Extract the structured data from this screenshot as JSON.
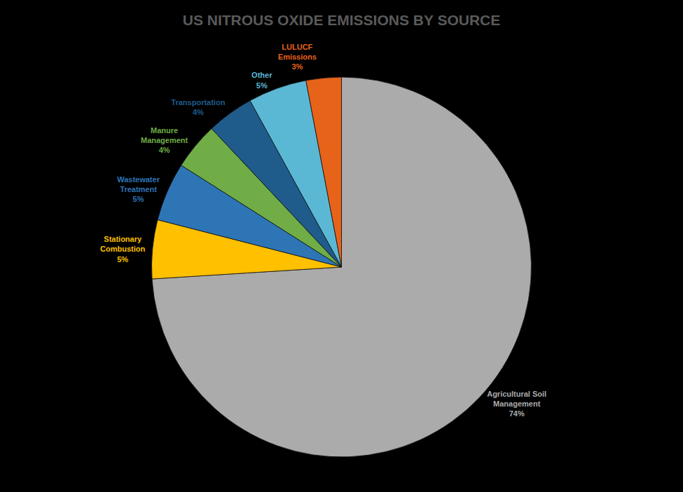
{
  "chart_data": {
    "type": "pie",
    "title": "US NITROUS OXIDE EMISSIONS BY SOURCE",
    "categories": [
      "Agricultural Soil\nManagement",
      "Stationary\nCombustion",
      "Wastewater\nTreatment",
      "Manure\nManagement",
      "Transportation",
      "Other",
      "LULUCF\nEmissions"
    ],
    "values": [
      74,
      5,
      5,
      4,
      4,
      5,
      3
    ],
    "value_labels": [
      "74%",
      "5%",
      "5%",
      "4%",
      "4%",
      "5%",
      "3%"
    ],
    "colors": [
      "#ABABAB",
      "#FFC000",
      "#2E75B6",
      "#70AD47",
      "#1F5C8B",
      "#5BB8D4",
      "#E8631A"
    ],
    "data_labels": true
  }
}
